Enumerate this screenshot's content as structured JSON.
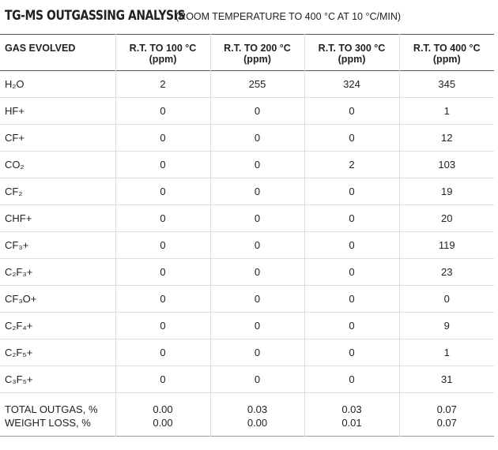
{
  "header": {
    "title": "TG-MS OUTGASSING ANALYSIS",
    "subtitle": "(ROOM TEMPERATURE TO 400 °C AT 10 °C/MIN)"
  },
  "table": {
    "first_column_header": "GAS EVOLVED",
    "columns": [
      {
        "label": "R.T. TO 100 °C",
        "unit": "(ppm)"
      },
      {
        "label": "R.T. TO 200 °C",
        "unit": "(ppm)"
      },
      {
        "label": "R.T. TO 300 °C",
        "unit": "(ppm)"
      },
      {
        "label": "R.T. TO 400 °C",
        "unit": "(ppm)"
      }
    ],
    "rows": [
      [
        "H₂O",
        "2",
        "255",
        "324",
        "345"
      ],
      [
        "HF+",
        "0",
        "0",
        "0",
        "1"
      ],
      [
        "CF+",
        "0",
        "0",
        "0",
        "12"
      ],
      [
        "CO₂",
        "0",
        "0",
        "2",
        "103"
      ],
      [
        "CF₂",
        "0",
        "0",
        "0",
        "19"
      ],
      [
        "CHF+",
        "0",
        "0",
        "0",
        "20"
      ],
      [
        "CF₃+",
        "0",
        "0",
        "0",
        "119"
      ],
      [
        "C₂F₃+",
        "0",
        "0",
        "0",
        "23"
      ],
      [
        "CF₃O+",
        "0",
        "0",
        "0",
        "0"
      ],
      [
        "C₂F₄+",
        "0",
        "0",
        "0",
        "9"
      ],
      [
        "C₂F₅+",
        "0",
        "0",
        "0",
        "1"
      ],
      [
        "C₃F₅+",
        "0",
        "0",
        "0",
        "31"
      ]
    ],
    "summary_rows": [
      [
        "TOTAL OUTGAS, %",
        "0.00",
        "0.03",
        "0.03",
        "0.07"
      ],
      [
        "WEIGHT LOSS, %",
        "0.00",
        "0.00",
        "0.01",
        "0.07"
      ]
    ]
  }
}
